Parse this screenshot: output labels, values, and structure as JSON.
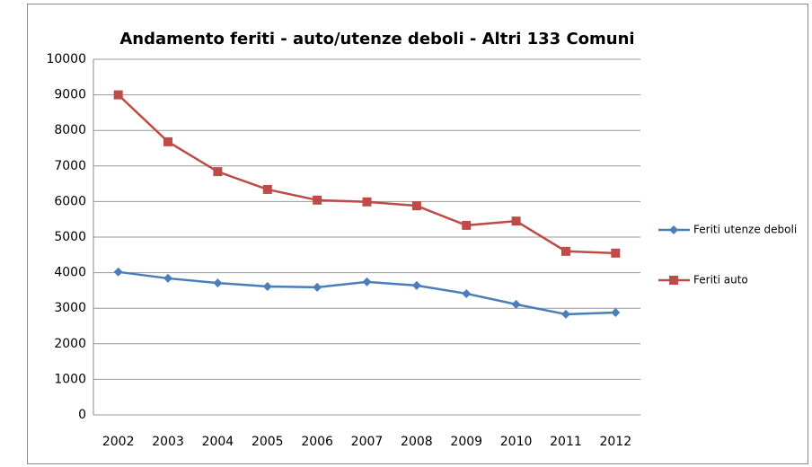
{
  "chart_data": {
    "type": "line",
    "title": "Andamento feriti - auto/utenze deboli - Altri 133 Comuni",
    "categories": [
      "2002",
      "2003",
      "2004",
      "2005",
      "2006",
      "2007",
      "2008",
      "2009",
      "2010",
      "2011",
      "2012"
    ],
    "series": [
      {
        "name": "Feriti utenze deboli",
        "color": "#4a7ebb",
        "marker": "diamond",
        "values": [
          4020,
          3840,
          3710,
          3610,
          3590,
          3740,
          3640,
          3410,
          3110,
          2830,
          2880
        ]
      },
      {
        "name": "Feriti auto",
        "color": "#be4b48",
        "marker": "square",
        "values": [
          9000,
          7680,
          6840,
          6340,
          6040,
          5990,
          5880,
          5330,
          5450,
          4600,
          4550
        ]
      }
    ],
    "ylim": [
      0,
      10000
    ],
    "yticks": [
      0,
      1000,
      2000,
      3000,
      4000,
      5000,
      6000,
      7000,
      8000,
      9000,
      10000
    ],
    "grid": true,
    "legend": "right"
  }
}
